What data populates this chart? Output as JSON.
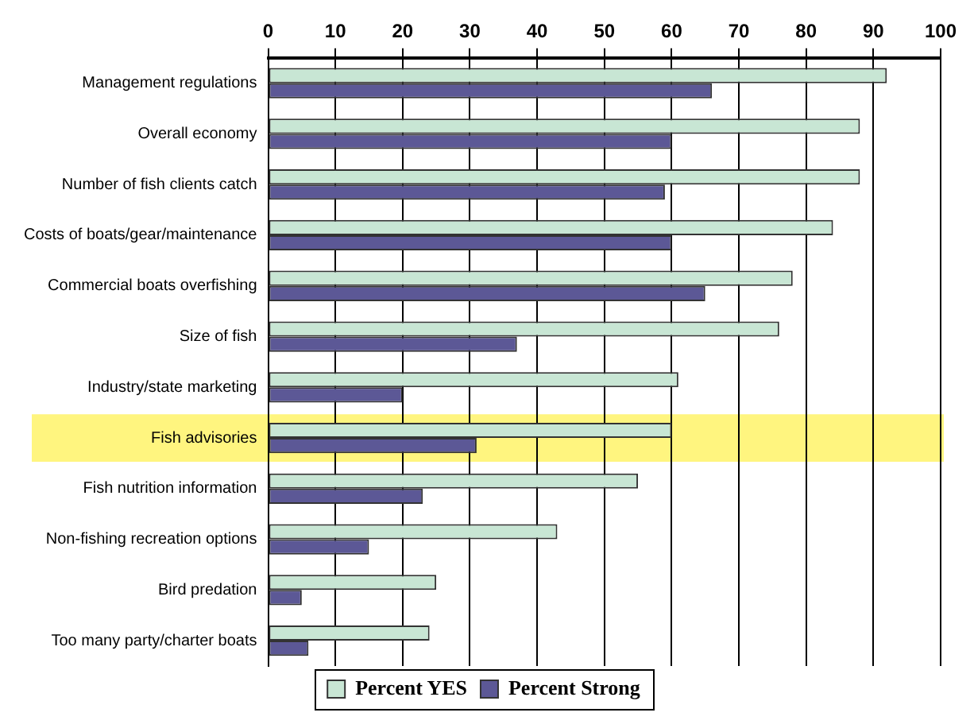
{
  "chart_data": {
    "type": "bar",
    "orientation": "horizontal",
    "categories": [
      "Management regulations",
      "Overall economy",
      "Number of fish clients catch",
      "Costs of boats/gear/maintenance",
      "Commercial boats overfishing",
      "Size of fish",
      "Industry/state marketing",
      "Fish advisories",
      "Fish nutrition information",
      "Non-fishing recreation options",
      "Bird predation",
      "Too many party/charter boats"
    ],
    "series": [
      {
        "name": "Percent YES",
        "color": "#c8e6d4",
        "values": [
          92,
          88,
          88,
          84,
          78,
          76,
          61,
          60,
          55,
          43,
          25,
          24
        ]
      },
      {
        "name": "Percent Strong",
        "color": "#5c5896",
        "values": [
          66,
          60,
          59,
          60,
          65,
          37,
          20,
          31,
          23,
          15,
          5,
          6
        ]
      }
    ],
    "xlim": [
      0,
      100
    ],
    "xticks": [
      0,
      10,
      20,
      30,
      40,
      50,
      60,
      70,
      80,
      90,
      100
    ],
    "bands": [
      {
        "axis": "y",
        "from": "Fish advisories",
        "to": "Fish advisories",
        "color": "#fff57f"
      }
    ],
    "grid": "x",
    "legend": "bottom"
  }
}
